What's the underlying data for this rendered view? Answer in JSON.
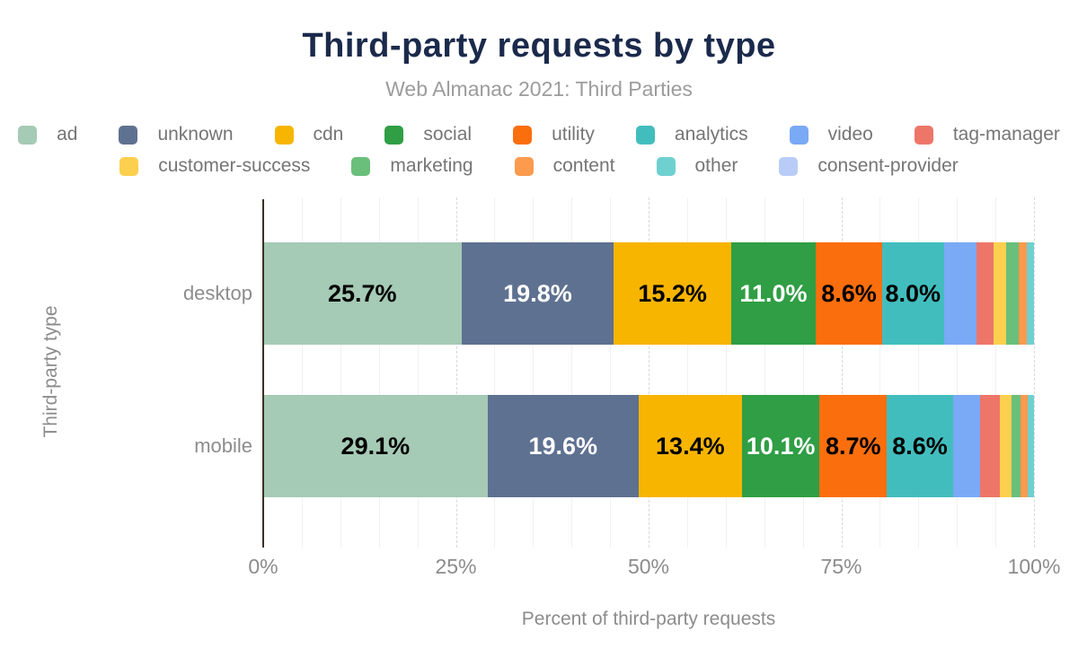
{
  "title": "Third-party requests by type",
  "subtitle": "Web Almanac 2021: Third Parties",
  "chart_data": {
    "type": "bar",
    "orientation": "horizontal",
    "stacked": true,
    "grid": "minor vertical every 5%, dashed major every 25%",
    "legend_position": "top",
    "title": "Third-party requests by type",
    "subtitle": "Web Almanac 2021: Third Parties",
    "xlabel": "Percent of third-party requests",
    "ylabel": "Third-party type",
    "xlim": [
      0,
      100
    ],
    "minor_step": 5,
    "major_step": 25,
    "categories": [
      "desktop",
      "mobile"
    ],
    "xticks": [
      {
        "value": 0,
        "label": "0%"
      },
      {
        "value": 25,
        "label": "25%"
      },
      {
        "value": 50,
        "label": "50%"
      },
      {
        "value": 75,
        "label": "75%"
      },
      {
        "value": 100,
        "label": "100%"
      }
    ],
    "series": [
      {
        "name": "ad",
        "color": "#a5cab5",
        "label_color": "#000000",
        "values": [
          25.7,
          29.1
        ],
        "value_labels": [
          "25.7%",
          "29.1%"
        ]
      },
      {
        "name": "unknown",
        "color": "#5f7191",
        "label_color": "#ffffff",
        "values": [
          19.8,
          19.6
        ],
        "value_labels": [
          "19.8%",
          "19.6%"
        ]
      },
      {
        "name": "cdn",
        "color": "#f7b500",
        "label_color": "#000000",
        "values": [
          15.2,
          13.4
        ],
        "value_labels": [
          "15.2%",
          "13.4%"
        ]
      },
      {
        "name": "social",
        "color": "#2f9e44",
        "label_color": "#ffffff",
        "values": [
          11.0,
          10.1
        ],
        "value_labels": [
          "11.0%",
          "10.1%"
        ]
      },
      {
        "name": "utility",
        "color": "#fa6e0e",
        "label_color": "#000000",
        "values": [
          8.6,
          8.7
        ],
        "value_labels": [
          "8.6%",
          "8.7%"
        ]
      },
      {
        "name": "analytics",
        "color": "#42bdbe",
        "label_color": "#000000",
        "values": [
          8.0,
          8.6
        ],
        "value_labels": [
          "8.0%",
          "8.6%"
        ]
      },
      {
        "name": "video",
        "color": "#7aa9f5",
        "label_color": "#000000",
        "values": [
          4.2,
          3.5
        ],
        "value_labels": [
          null,
          null
        ]
      },
      {
        "name": "tag-manager",
        "color": "#ed7669",
        "label_color": "#000000",
        "values": [
          2.3,
          2.6
        ],
        "value_labels": [
          null,
          null
        ]
      },
      {
        "name": "customer-success",
        "color": "#fcd04e",
        "label_color": "#000000",
        "values": [
          1.6,
          1.5
        ],
        "value_labels": [
          null,
          null
        ]
      },
      {
        "name": "marketing",
        "color": "#6abf7b",
        "label_color": "#000000",
        "values": [
          1.6,
          1.2
        ],
        "value_labels": [
          null,
          null
        ]
      },
      {
        "name": "content",
        "color": "#fc9a4e",
        "label_color": "#000000",
        "values": [
          1.1,
          0.9
        ],
        "value_labels": [
          null,
          null
        ]
      },
      {
        "name": "other",
        "color": "#6fd0d0",
        "label_color": "#000000",
        "values": [
          0.9,
          0.8
        ],
        "value_labels": [
          null,
          null
        ]
      },
      {
        "name": "consent-provider",
        "color": "#b9ccf7",
        "label_color": "#000000",
        "values": [
          0.0,
          0.0
        ],
        "value_labels": [
          null,
          null
        ]
      }
    ],
    "legend_rows": [
      [
        "ad",
        "unknown",
        "cdn",
        "social",
        "utility",
        "analytics",
        "video",
        "tag-manager"
      ],
      [
        "customer-success",
        "marketing",
        "content",
        "other",
        "consent-provider"
      ]
    ]
  },
  "colors": {
    "title": "#1b2a4b",
    "subtitle": "#9c9c9c",
    "axis_text": "#8c8c8c",
    "axis_line": "#3b3024"
  }
}
